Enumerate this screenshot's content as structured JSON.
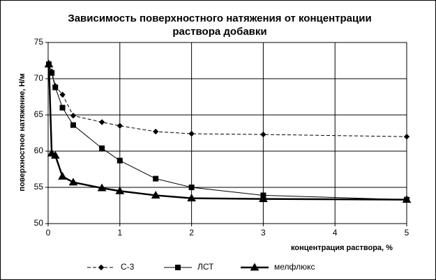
{
  "chart_data": {
    "type": "line",
    "title": "Зависимость поверхностного натяжения от концентрации раствора добавки",
    "x_label": "концентрация раствора, %",
    "y_label": "поверхностное натяжение, Н/м",
    "x": [
      0.01,
      0.05,
      0.1,
      0.2,
      0.35,
      0.75,
      1,
      1.5,
      2,
      3,
      5
    ],
    "series": [
      {
        "name": "С-3",
        "color": "#000000",
        "line_style": "dashed",
        "line_width": 1,
        "marker": "diamond",
        "values": [
          72,
          71,
          69,
          67.8,
          64.9,
          64,
          63.5,
          62.7,
          62.4,
          62.3,
          62
        ]
      },
      {
        "name": "ЛСТ",
        "color": "#000000",
        "line_style": "solid",
        "line_width": 1,
        "marker": "square",
        "values": [
          72,
          70.8,
          68.8,
          66,
          63.6,
          60.4,
          58.7,
          56.2,
          55,
          53.9,
          53.3
        ]
      },
      {
        "name": "мелфлюкс",
        "color": "#000000",
        "line_style": "solid",
        "line_width": 2.5,
        "marker": "triangle",
        "values": [
          72,
          59.7,
          59.4,
          56.5,
          55.7,
          54.9,
          54.5,
          53.9,
          53.5,
          53.4,
          53.3
        ]
      }
    ],
    "xlim": [
      0,
      5
    ],
    "xticks": [
      0,
      1,
      2,
      3,
      4,
      5
    ],
    "ylim": [
      50,
      75
    ],
    "yticks": [
      50,
      55,
      60,
      65,
      70,
      75
    ],
    "grid": true,
    "legend": "bottom"
  }
}
